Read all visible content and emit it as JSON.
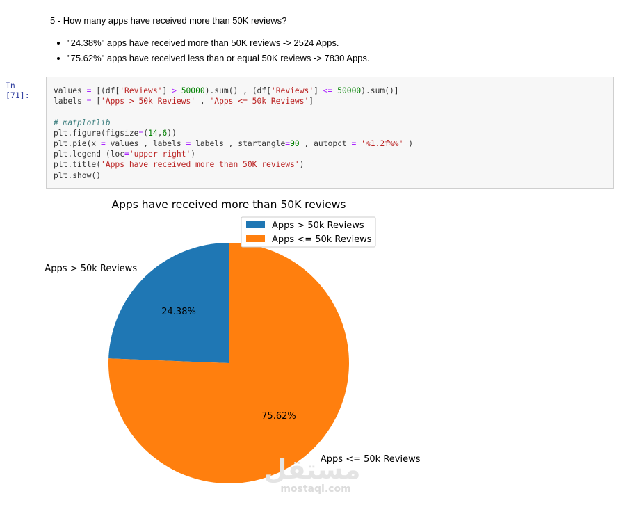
{
  "markdown": {
    "question": "5 - How many apps have received more than 50K reviews?",
    "bullets": [
      "\"24.38%\" apps have received more than 50K reviews -> 2524 Apps.",
      "\"75.62%\" apps have received less than or equal 50K reviews -> 7830 Apps."
    ]
  },
  "cell": {
    "prompt": "In [71]:"
  },
  "chart_data": {
    "type": "pie",
    "title": "Apps have received more than 50K reviews",
    "labels": [
      "Apps > 50k Reviews",
      "Apps <= 50k Reviews"
    ],
    "values": [
      2524,
      7830
    ],
    "autopct": [
      "24.38%",
      "75.62%"
    ],
    "startangle": 90,
    "colors": [
      "#1f77b4",
      "#ff7f0e"
    ],
    "legend_loc": "upper right"
  },
  "watermark": {
    "arabic": "مستقل",
    "latin": "mostaql.com"
  }
}
